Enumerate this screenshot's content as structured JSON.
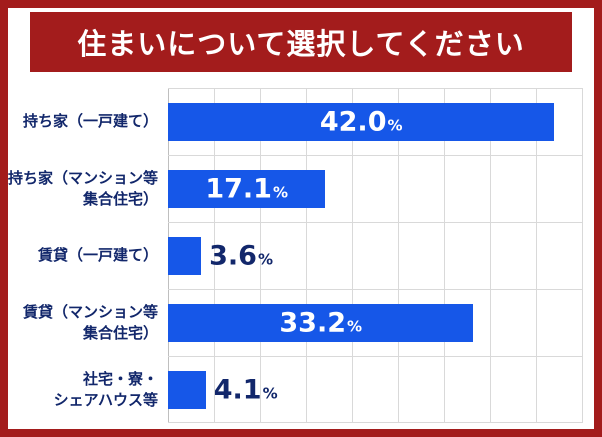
{
  "colors": {
    "accent_red": "#a31c1c",
    "bar_blue": "#1657e8",
    "text_navy": "#12276b",
    "grid_gray": "#d9d9d9",
    "axis_gray": "#bfbfbf",
    "inside_label": "#ffffff",
    "background": "#ffffff"
  },
  "title": {
    "text": "住まいについて選択してください"
  },
  "chart_data": {
    "type": "bar",
    "orientation": "horizontal",
    "title": "住まいについて選択してください",
    "categories": [
      "持ち家（一戸建て）",
      "持ち家（マンション等\n集合住宅）",
      "賃貸（一戸建て）",
      "賃貸（マンション等\n集合住宅）",
      "社宅・寮・\nシェアハウス等"
    ],
    "values": [
      42.0,
      17.1,
      3.6,
      33.2,
      4.1
    ],
    "value_suffix": "%",
    "value_decimals": 1,
    "xlim": [
      0,
      45
    ],
    "gridline_step": 5,
    "grid": true,
    "legend": false,
    "inside_label_threshold": 10
  }
}
